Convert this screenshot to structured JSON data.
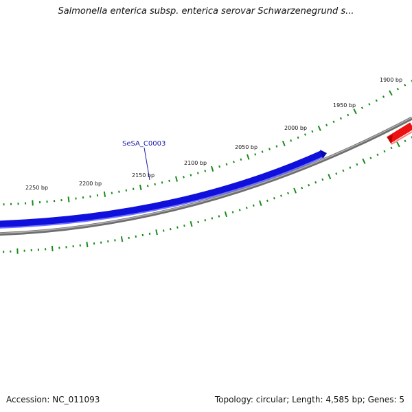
{
  "title": "Salmonella enterica subsp. enterica serovar Schwarzenegrund s...",
  "accession_text": "Accession: NC_011093",
  "summary_text": "Topology: circular; Length: 4,585 bp; Genes: 5",
  "ruler": {
    "unit": "bp",
    "labels": [
      "1900 bp",
      "1950 bp",
      "2000 bp",
      "2050 bp",
      "2100 bp",
      "2150 bp",
      "2200 bp",
      "2250 bp"
    ],
    "tick_color": "#1a8a1a"
  },
  "genes": [
    {
      "name": "SeSA_C0003",
      "color": "#1010dd",
      "strand": "forward",
      "label_shown": true
    },
    {
      "name": "",
      "color": "#ee1111",
      "strand": "forward",
      "label_shown": false
    }
  ],
  "colors": {
    "backbone": "#808080",
    "gene_blue": "#1010dd",
    "gene_red": "#ee1111",
    "label_line": "#1a1aaa"
  }
}
